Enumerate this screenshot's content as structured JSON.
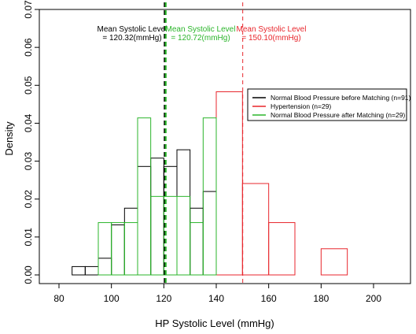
{
  "chart_data": {
    "type": "bar",
    "xlabel": "HP Systolic Level (mmHg)",
    "ylabel": "Density",
    "xlim": [
      75,
      200
    ],
    "ylim": [
      0,
      0.07
    ],
    "x_ticks": [
      "80",
      "100",
      "120",
      "140",
      "160",
      "180",
      "200"
    ],
    "y_ticks": [
      "0.00",
      "0.01",
      "0.02",
      "0.03",
      "0.04",
      "0.05",
      "0.06",
      "0.07"
    ],
    "grid": false,
    "legend_position": "top-right",
    "series": [
      {
        "name": "Normal Blood Pressure before Matching (n=91)",
        "color": "#000000",
        "bin_width": 5,
        "bins": [
          {
            "x": 85,
            "density": 0.0022
          },
          {
            "x": 90,
            "density": 0.0022
          },
          {
            "x": 95,
            "density": 0.0044
          },
          {
            "x": 100,
            "density": 0.0132
          },
          {
            "x": 105,
            "density": 0.0176
          },
          {
            "x": 110,
            "density": 0.0286
          },
          {
            "x": 115,
            "density": 0.0308
          },
          {
            "x": 120,
            "density": 0.0286
          },
          {
            "x": 125,
            "density": 0.033
          },
          {
            "x": 130,
            "density": 0.0176
          },
          {
            "x": 135,
            "density": 0.022
          }
        ]
      },
      {
        "name": "Hypertension (n=29)",
        "color": "#e8262c",
        "bin_width": 10,
        "bins": [
          {
            "x": 120,
            "density": 0
          },
          {
            "x": 130,
            "density": 0
          },
          {
            "x": 140,
            "density": 0.0483
          },
          {
            "x": 150,
            "density": 0.0241
          },
          {
            "x": 160,
            "density": 0.0138
          },
          {
            "x": 170,
            "density": 0
          },
          {
            "x": 180,
            "density": 0.0069
          }
        ]
      },
      {
        "name": "Normal Blood Pressure after Matching (n=29)",
        "color": "#2bb52b",
        "bin_width": 5,
        "bins": [
          {
            "x": 95,
            "density": 0.0138
          },
          {
            "x": 100,
            "density": 0.0138
          },
          {
            "x": 105,
            "density": 0.0138
          },
          {
            "x": 110,
            "density": 0.0414
          },
          {
            "x": 115,
            "density": 0.0207
          },
          {
            "x": 120,
            "density": 0.0207
          },
          {
            "x": 125,
            "density": 0.0207
          },
          {
            "x": 130,
            "density": 0.0138
          },
          {
            "x": 135,
            "density": 0.0414
          }
        ]
      }
    ],
    "mean_lines": [
      {
        "x": 120.32,
        "color": "#000000",
        "line1": "Mean Systolic Level",
        "line2": "= 120.32(mmHg)"
      },
      {
        "x": 120.72,
        "color": "#2bb52b",
        "line1": "Mean Systolic Level",
        "line2": "= 120.72(mmHg)"
      },
      {
        "x": 150.1,
        "color": "#e8262c",
        "line1": "Mean Systolic Level",
        "line2": "= 150.10(mmHg)"
      }
    ]
  }
}
